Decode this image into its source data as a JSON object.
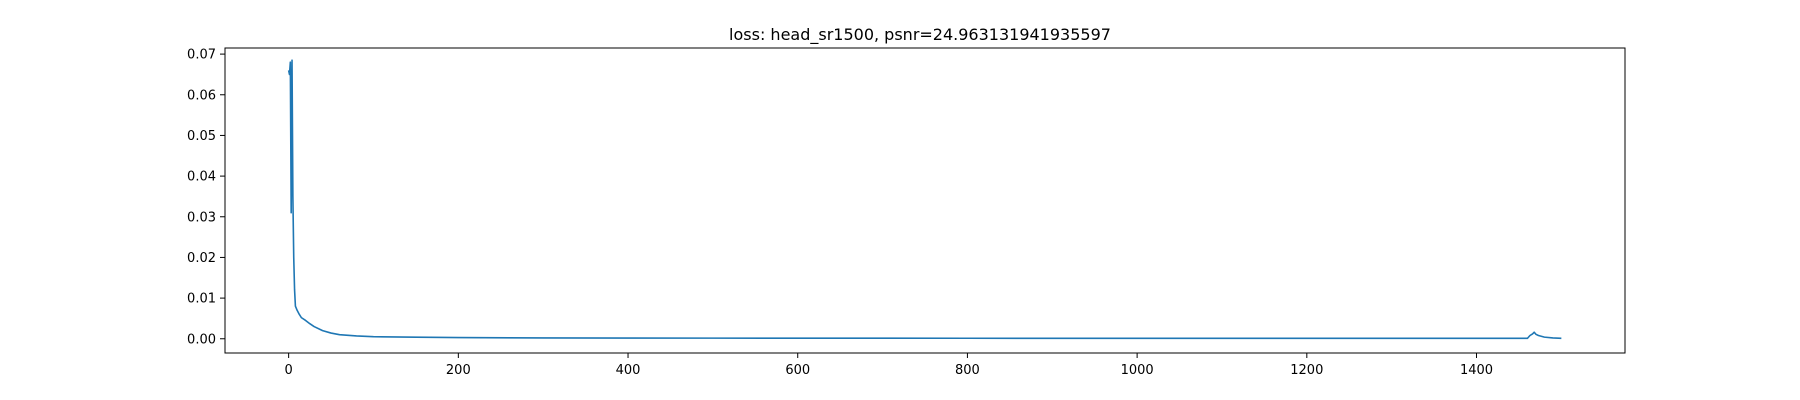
{
  "chart_data": {
    "type": "line",
    "title": "loss: head_sr1500, psnr=24.963131941935597",
    "xlabel": "",
    "ylabel": "",
    "xlim": [
      -75,
      1575
    ],
    "ylim": [
      -0.0035,
      0.0715
    ],
    "grid": false,
    "x_ticks": [
      0,
      200,
      400,
      600,
      800,
      1000,
      1200,
      1400
    ],
    "x_tick_labels": [
      "0",
      "200",
      "400",
      "600",
      "800",
      "1000",
      "1200",
      "1400"
    ],
    "y_ticks": [
      0.0,
      0.01,
      0.02,
      0.03,
      0.04,
      0.05,
      0.06,
      0.07
    ],
    "y_tick_labels": [
      "0.00",
      "0.01",
      "0.02",
      "0.03",
      "0.04",
      "0.05",
      "0.06",
      "0.07"
    ],
    "series": [
      {
        "color": "#1f77b4",
        "x": [
          0,
          1,
          2,
          3,
          4,
          5,
          6,
          7,
          8,
          10,
          12,
          15,
          20,
          25,
          30,
          40,
          50,
          60,
          80,
          100,
          150,
          200,
          300,
          400,
          500,
          600,
          700,
          800,
          900,
          1000,
          1100,
          1200,
          1300,
          1400,
          1460,
          1463,
          1466,
          1468,
          1470,
          1473,
          1480,
          1490,
          1500
        ],
        "y": [
          0.066,
          0.065,
          0.068,
          0.031,
          0.0685,
          0.035,
          0.02,
          0.012,
          0.008,
          0.007,
          0.0062,
          0.0052,
          0.0045,
          0.0037,
          0.003,
          0.002,
          0.0014,
          0.001,
          0.0007,
          0.0005,
          0.0004,
          0.0003,
          0.0002,
          0.00018,
          0.00016,
          0.00015,
          0.00014,
          0.00013,
          0.00012,
          0.00011,
          0.0001,
          0.0001,
          0.0001,
          0.0001,
          0.0001,
          0.0008,
          0.0012,
          0.0016,
          0.0011,
          0.0008,
          0.0004,
          0.0002,
          0.0001
        ]
      }
    ]
  }
}
